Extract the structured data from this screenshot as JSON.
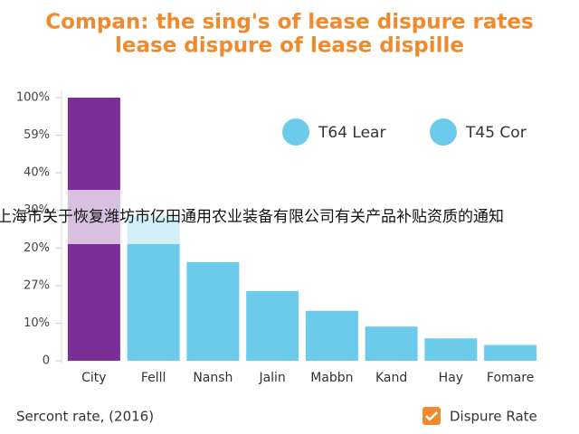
{
  "chart_data": {
    "type": "bar",
    "title": [
      "Compan: the sing's of lease dispure rates",
      "lease dispure of lease dispille"
    ],
    "categories": [
      "City",
      "Felll",
      "Nansh",
      "Jalin",
      "Mabbn",
      "Kand",
      "Hay",
      "Fomare"
    ],
    "values": [
      100,
      55,
      37.5,
      26.5,
      19,
      13,
      8.5,
      6
    ],
    "colors": [
      "#7a2e98",
      "#6ccbea",
      "#6ccbea",
      "#6ccbea",
      "#6ccbea",
      "#6ccbea",
      "#6ccbea",
      "#6ccbea"
    ],
    "ylim": [
      0,
      100
    ],
    "yticks": [
      0,
      {
        "value": 14.29,
        "label": "10%"
      },
      {
        "value": 28.57,
        "label": "27%"
      },
      {
        "value": 42.86,
        "label": "20%"
      },
      {
        "value": 57.14,
        "label": "30%"
      },
      {
        "value": 71.43,
        "label": "40%"
      },
      {
        "value": 85.71,
        "label": "59%"
      },
      {
        "value": 100,
        "label": "100%"
      }
    ],
    "legend": [
      {
        "name": "T64 Lear",
        "color": "#6ccbea"
      },
      {
        "name": "T45 Cor",
        "color": "#6ccbea"
      }
    ],
    "footnote": "Sercont rate, (2016)",
    "checkbox_label": "Dispure Rate",
    "overlay_text": "上海市关于恢复潍坊市亿田通用农业装备有限公司有关产品补贴资质的通知"
  }
}
